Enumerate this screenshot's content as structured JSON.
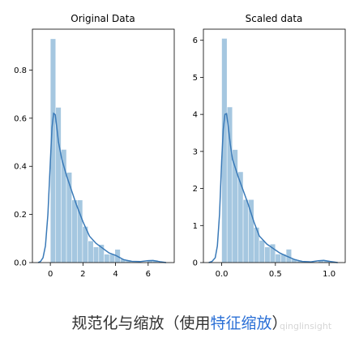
{
  "chart_data": [
    {
      "type": "histogram",
      "title": "Original Data",
      "xlim": [
        -1.1,
        7.6
      ],
      "ylim": [
        0,
        0.97
      ],
      "xticks": [
        0,
        2,
        4,
        6
      ],
      "yticks": [
        0.0,
        0.2,
        0.4,
        0.6,
        0.8
      ],
      "bins": [
        {
          "x0": 0.0,
          "x1": 0.33,
          "height": 0.93
        },
        {
          "x0": 0.33,
          "x1": 0.66,
          "height": 0.645
        },
        {
          "x0": 0.66,
          "x1": 0.99,
          "height": 0.47
        },
        {
          "x0": 0.99,
          "x1": 1.32,
          "height": 0.375
        },
        {
          "x0": 1.32,
          "x1": 1.65,
          "height": 0.26
        },
        {
          "x0": 1.65,
          "x1": 1.98,
          "height": 0.26
        },
        {
          "x0": 1.98,
          "x1": 2.31,
          "height": 0.15
        },
        {
          "x0": 2.31,
          "x1": 2.64,
          "height": 0.09
        },
        {
          "x0": 2.64,
          "x1": 2.97,
          "height": 0.065
        },
        {
          "x0": 2.97,
          "x1": 3.3,
          "height": 0.075
        },
        {
          "x0": 3.3,
          "x1": 3.63,
          "height": 0.035
        },
        {
          "x0": 3.63,
          "x1": 3.96,
          "height": 0.035
        },
        {
          "x0": 3.96,
          "x1": 4.29,
          "height": 0.055
        },
        {
          "x0": 4.29,
          "x1": 4.62,
          "height": 0.015
        },
        {
          "x0": 4.62,
          "x1": 4.95,
          "height": 0.01
        },
        {
          "x0": 5.94,
          "x1": 6.27,
          "height": 0.01
        },
        {
          "x0": 6.27,
          "x1": 6.6,
          "height": 0.01
        }
      ],
      "kde": [
        [
          -0.75,
          0.0
        ],
        [
          -0.6,
          0.005
        ],
        [
          -0.45,
          0.02
        ],
        [
          -0.3,
          0.07
        ],
        [
          -0.15,
          0.2
        ],
        [
          0.0,
          0.42
        ],
        [
          0.1,
          0.56
        ],
        [
          0.2,
          0.62
        ],
        [
          0.3,
          0.615
        ],
        [
          0.4,
          0.56
        ],
        [
          0.5,
          0.5
        ],
        [
          0.7,
          0.43
        ],
        [
          1.0,
          0.36
        ],
        [
          1.3,
          0.3
        ],
        [
          1.6,
          0.24
        ],
        [
          2.0,
          0.17
        ],
        [
          2.4,
          0.11
        ],
        [
          2.8,
          0.08
        ],
        [
          3.2,
          0.06
        ],
        [
          3.6,
          0.04
        ],
        [
          4.0,
          0.03
        ],
        [
          4.5,
          0.012
        ],
        [
          5.0,
          0.005
        ],
        [
          5.5,
          0.004
        ],
        [
          6.0,
          0.008
        ],
        [
          6.3,
          0.009
        ],
        [
          6.7,
          0.004
        ],
        [
          7.1,
          0.0
        ]
      ]
    },
    {
      "type": "histogram",
      "title": "Scaled data",
      "xlim": [
        -0.17,
        1.15
      ],
      "ylim": [
        0,
        6.3
      ],
      "xticks": [
        0.0,
        0.5,
        1.0
      ],
      "yticks": [
        0,
        1,
        2,
        3,
        4,
        5,
        6
      ],
      "bins": [
        {
          "x0": 0.0,
          "x1": 0.05,
          "height": 6.05
        },
        {
          "x0": 0.05,
          "x1": 0.1,
          "height": 4.2
        },
        {
          "x0": 0.1,
          "x1": 0.15,
          "height": 3.05
        },
        {
          "x0": 0.15,
          "x1": 0.2,
          "height": 2.45
        },
        {
          "x0": 0.2,
          "x1": 0.25,
          "height": 1.7
        },
        {
          "x0": 0.25,
          "x1": 0.3,
          "height": 1.7
        },
        {
          "x0": 0.3,
          "x1": 0.35,
          "height": 0.95
        },
        {
          "x0": 0.35,
          "x1": 0.4,
          "height": 0.6
        },
        {
          "x0": 0.4,
          "x1": 0.45,
          "height": 0.42
        },
        {
          "x0": 0.45,
          "x1": 0.5,
          "height": 0.5
        },
        {
          "x0": 0.5,
          "x1": 0.55,
          "height": 0.23
        },
        {
          "x0": 0.55,
          "x1": 0.6,
          "height": 0.23
        },
        {
          "x0": 0.6,
          "x1": 0.65,
          "height": 0.36
        },
        {
          "x0": 0.65,
          "x1": 0.7,
          "height": 0.1
        },
        {
          "x0": 0.7,
          "x1": 0.75,
          "height": 0.06
        },
        {
          "x0": 0.9,
          "x1": 0.95,
          "height": 0.06
        },
        {
          "x0": 0.95,
          "x1": 1.0,
          "height": 0.06
        }
      ],
      "kde": [
        [
          -0.12,
          0.0
        ],
        [
          -0.09,
          0.03
        ],
        [
          -0.06,
          0.13
        ],
        [
          -0.04,
          0.45
        ],
        [
          -0.02,
          1.3
        ],
        [
          0.0,
          2.75
        ],
        [
          0.015,
          3.6
        ],
        [
          0.03,
          4.0
        ],
        [
          0.045,
          4.02
        ],
        [
          0.06,
          3.7
        ],
        [
          0.08,
          3.2
        ],
        [
          0.1,
          2.8
        ],
        [
          0.15,
          2.35
        ],
        [
          0.2,
          1.95
        ],
        [
          0.25,
          1.55
        ],
        [
          0.3,
          1.1
        ],
        [
          0.35,
          0.72
        ],
        [
          0.42,
          0.5
        ],
        [
          0.48,
          0.38
        ],
        [
          0.54,
          0.26
        ],
        [
          0.6,
          0.18
        ],
        [
          0.68,
          0.08
        ],
        [
          0.75,
          0.03
        ],
        [
          0.83,
          0.02
        ],
        [
          0.9,
          0.05
        ],
        [
          0.95,
          0.06
        ],
        [
          1.01,
          0.03
        ],
        [
          1.08,
          0.0
        ]
      ]
    }
  ],
  "caption": {
    "prefix": "规范化与缩放（使用",
    "highlight": "特征缩放",
    "suffix": "）"
  },
  "watermark": "qinglinsight",
  "colors": {
    "bar": "#a5c7e0",
    "kde": "#3a7ab8",
    "axis": "#000000",
    "highlight": "#2a6fd6"
  }
}
